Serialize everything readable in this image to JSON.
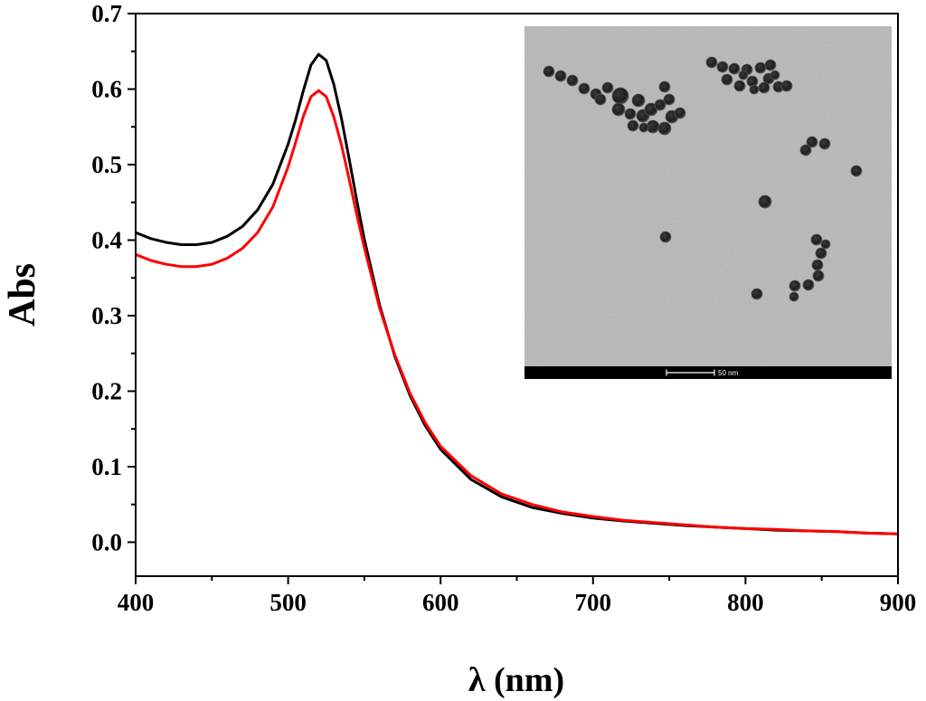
{
  "chart_data": {
    "type": "line",
    "title": "",
    "xlabel": "λ (nm)",
    "ylabel": "Abs",
    "xlim": [
      400,
      900
    ],
    "ylim": [
      -0.045,
      0.7
    ],
    "xticks": [
      400,
      500,
      600,
      700,
      800,
      900
    ],
    "yticks": [
      0.0,
      0.1,
      0.2,
      0.3,
      0.4,
      0.5,
      0.6,
      0.7
    ],
    "grid": false,
    "legend": "none",
    "series": [
      {
        "name": "black",
        "color": "#000000",
        "x": [
          400,
          410,
          420,
          430,
          440,
          450,
          460,
          470,
          480,
          490,
          500,
          505,
          510,
          515,
          520,
          525,
          530,
          535,
          540,
          545,
          550,
          560,
          570,
          580,
          590,
          600,
          620,
          640,
          660,
          680,
          700,
          720,
          740,
          760,
          780,
          800,
          820,
          840,
          860,
          880,
          900
        ],
        "y": [
          0.41,
          0.402,
          0.397,
          0.394,
          0.394,
          0.397,
          0.405,
          0.418,
          0.44,
          0.474,
          0.527,
          0.56,
          0.598,
          0.632,
          0.646,
          0.638,
          0.606,
          0.561,
          0.508,
          0.453,
          0.401,
          0.314,
          0.246,
          0.194,
          0.154,
          0.123,
          0.083,
          0.06,
          0.046,
          0.038,
          0.032,
          0.028,
          0.025,
          0.022,
          0.02,
          0.018,
          0.016,
          0.015,
          0.014,
          0.012,
          0.011
        ]
      },
      {
        "name": "red",
        "color": "#ff0000",
        "x": [
          400,
          410,
          420,
          430,
          440,
          450,
          460,
          470,
          480,
          490,
          500,
          505,
          510,
          515,
          520,
          525,
          530,
          535,
          540,
          545,
          550,
          560,
          570,
          580,
          590,
          600,
          620,
          640,
          660,
          680,
          700,
          720,
          740,
          760,
          780,
          800,
          820,
          840,
          860,
          880,
          900
        ],
        "y": [
          0.381,
          0.373,
          0.368,
          0.365,
          0.365,
          0.368,
          0.376,
          0.389,
          0.41,
          0.444,
          0.497,
          0.53,
          0.564,
          0.59,
          0.598,
          0.59,
          0.563,
          0.526,
          0.481,
          0.434,
          0.39,
          0.31,
          0.248,
          0.197,
          0.158,
          0.127,
          0.088,
          0.064,
          0.05,
          0.04,
          0.034,
          0.029,
          0.026,
          0.023,
          0.02,
          0.018,
          0.017,
          0.015,
          0.014,
          0.012,
          0.011
        ]
      }
    ]
  },
  "inset": {
    "type": "TEM micrograph",
    "scale_bar_label": "50 nm"
  }
}
